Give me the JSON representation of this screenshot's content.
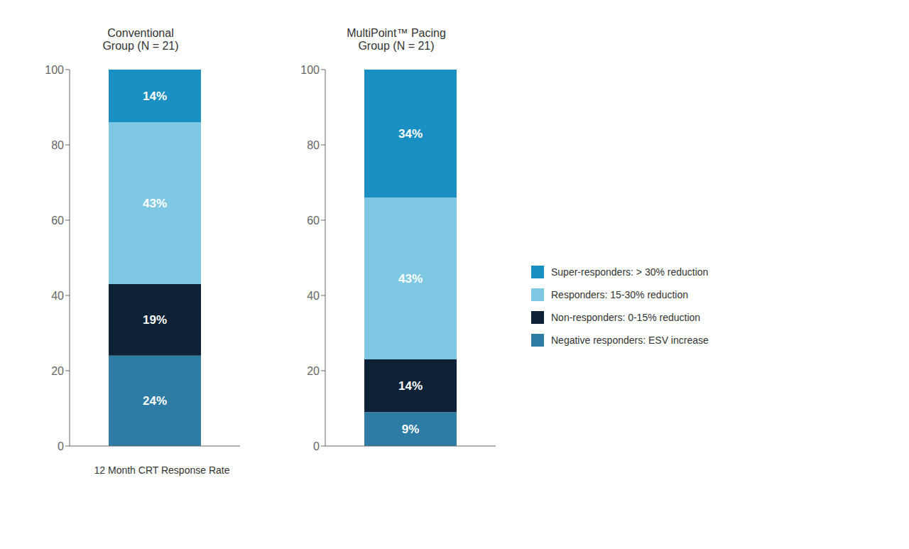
{
  "chart_data": [
    {
      "type": "bar",
      "title": "Conventional\nGroup (N = 21)",
      "xlabel": "12 Month CRT Response Rate",
      "categories": [
        null
      ],
      "stacked": true,
      "data_labels": true,
      "tick_labels": "y",
      "ylim": [
        0,
        100
      ],
      "yticks": [
        0,
        20,
        40,
        60,
        80,
        100
      ],
      "series": [
        {
          "name": "Negative responders: ESV increase",
          "color": "#2E7BA4",
          "values": [
            24
          ],
          "value_labels": [
            "24%"
          ]
        },
        {
          "name": "Non-responders: 0-15% reduction",
          "color": "#0D2137",
          "values": [
            19
          ],
          "value_labels": [
            "19%"
          ]
        },
        {
          "name": "Responders: 15-30% reduction",
          "color": "#7EC8E3",
          "values": [
            43
          ],
          "value_labels": [
            "43%"
          ]
        },
        {
          "name": "Super-responders: > 30% reduction",
          "color": "#1A8FC1",
          "values": [
            14
          ],
          "value_labels": [
            "14%"
          ]
        }
      ]
    },
    {
      "type": "bar",
      "title": "MultiPoint™ Pacing\nGroup (N = 21)",
      "categories": [
        null
      ],
      "stacked": true,
      "data_labels": true,
      "tick_labels": "y",
      "legend": "right",
      "ylim": [
        0,
        100
      ],
      "yticks": [
        0,
        20,
        40,
        60,
        80,
        100
      ],
      "series": [
        {
          "name": "Negative responders: ESV increase",
          "color": "#2E7BA4",
          "values": [
            9
          ],
          "value_labels": [
            "9%"
          ]
        },
        {
          "name": "Non-responders: 0-15% reduction",
          "color": "#0D2137",
          "values": [
            14
          ],
          "value_labels": [
            "14%"
          ]
        },
        {
          "name": "Responders: 15-30% reduction",
          "color": "#7EC8E3",
          "values": [
            43
          ],
          "value_labels": [
            "43%"
          ]
        },
        {
          "name": "Super-responders: > 30% reduction",
          "color": "#1A8FC1",
          "values": [
            34
          ],
          "value_labels": [
            "34%"
          ]
        }
      ]
    }
  ]
}
